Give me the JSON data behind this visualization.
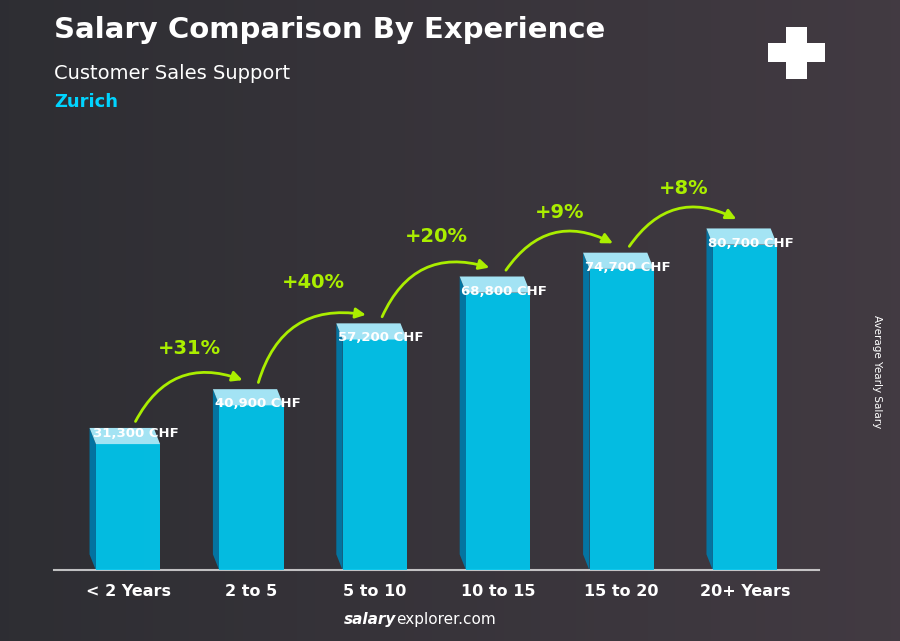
{
  "title": "Salary Comparison By Experience",
  "subtitle": "Customer Sales Support",
  "city": "Zurich",
  "categories": [
    "< 2 Years",
    "2 to 5",
    "5 to 10",
    "10 to 15",
    "15 to 20",
    "20+ Years"
  ],
  "values": [
    31300,
    40900,
    57200,
    68800,
    74700,
    80700
  ],
  "value_labels": [
    "31,300 CHF",
    "40,900 CHF",
    "57,200 CHF",
    "68,800 CHF",
    "74,700 CHF",
    "80,700 CHF"
  ],
  "pct_changes": [
    null,
    "+31%",
    "+40%",
    "+20%",
    "+9%",
    "+8%"
  ],
  "bar_color_face": "#00c8f0",
  "bar_color_left": "#007aaa",
  "bar_color_top": "#aaeeff",
  "text_color_white": "#ffffff",
  "text_color_city": "#00d4ff",
  "text_color_pct": "#aaee00",
  "footer_salary": "salary",
  "footer_rest": "explorer.com",
  "ylabel_rotated": "Average Yearly Salary",
  "flag_red": "#cc0000",
  "ylim_max": 100000,
  "bg_dark": "#1a1a2a"
}
